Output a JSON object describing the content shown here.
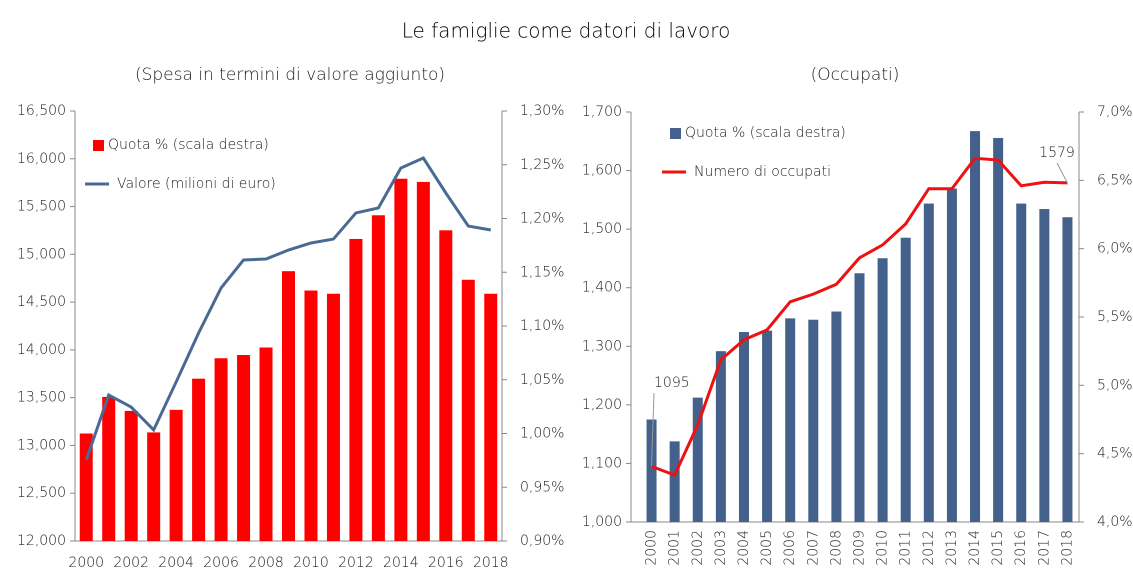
{
  "title": "Le famiglie come datori di lavoro",
  "chart_data": [
    {
      "type": "combo",
      "subtitle": "(Spesa in termini di valore aggiunto)",
      "categories": [
        "2000",
        null,
        "2002",
        null,
        "2004",
        null,
        "2006",
        null,
        "2008",
        null,
        "2010",
        null,
        "2012",
        null,
        "2014",
        null,
        "2016",
        null,
        "2018"
      ],
      "ylim": [
        12000,
        16500
      ],
      "yticks": [
        {
          "value": 12000,
          "label": "12,000"
        },
        {
          "value": 12500,
          "label": "12,500"
        },
        {
          "value": 13000,
          "label": "13,000"
        },
        {
          "value": 13500,
          "label": "13,500"
        },
        {
          "value": 14000,
          "label": "14,000"
        },
        {
          "value": 14500,
          "label": "14,500"
        },
        {
          "value": 15000,
          "label": "15,000"
        },
        {
          "value": 15500,
          "label": "15,500"
        },
        {
          "value": 16000,
          "label": "16,000"
        },
        {
          "value": 16500,
          "label": "16,500"
        }
      ],
      "y2lim": [
        0.9,
        1.3
      ],
      "y2ticks": [
        {
          "value": 0.9,
          "label": "0,90%"
        },
        {
          "value": 0.95,
          "label": "0,95%"
        },
        {
          "value": 1.0,
          "label": "1,00%"
        },
        {
          "value": 1.05,
          "label": "1,05%"
        },
        {
          "value": 1.1,
          "label": "1,10%"
        },
        {
          "value": 1.15,
          "label": "1,15%"
        },
        {
          "value": 1.2,
          "label": "1,20%"
        },
        {
          "value": 1.25,
          "label": "1,25%"
        },
        {
          "value": 1.3,
          "label": "1,30%"
        }
      ],
      "series": [
        {
          "name": "Quota % (scala destra)",
          "type": "bar",
          "axis": "y2",
          "color": "#ff0000",
          "values": [
            1.0,
            1.034,
            1.021,
            1.001,
            1.022,
            1.051,
            1.07,
            1.073,
            1.08,
            1.151,
            1.133,
            1.13,
            1.181,
            1.203,
            1.237,
            1.234,
            1.189,
            1.143,
            1.13
          ]
        },
        {
          "name": "Valore (milioni di euro)",
          "type": "line",
          "color": "#4a6a94",
          "values": [
            12848,
            13528,
            13402,
            13162,
            13664,
            14177,
            14648,
            14941,
            14951,
            15045,
            15119,
            15160,
            15433,
            15485,
            15903,
            16008,
            15642,
            15296,
            15255
          ]
        }
      ]
    },
    {
      "type": "combo",
      "subtitle": "(Occupati)",
      "categories": [
        "2000",
        "2001",
        "2002",
        "2003",
        "2004",
        "2005",
        "2006",
        "2007",
        "2008",
        "2009",
        "2010",
        "2011",
        "2012",
        "2013",
        "2014",
        "2015",
        "2016",
        "2017",
        "2018"
      ],
      "ylim": [
        1000,
        1700
      ],
      "yticks": [
        {
          "value": 1000,
          "label": "1,000"
        },
        {
          "value": 1100,
          "label": "1,100"
        },
        {
          "value": 1200,
          "label": "1,200"
        },
        {
          "value": 1300,
          "label": "1,300"
        },
        {
          "value": 1400,
          "label": "1,400"
        },
        {
          "value": 1500,
          "label": "1,500"
        },
        {
          "value": 1600,
          "label": "1,600"
        },
        {
          "value": 1700,
          "label": "1,700"
        }
      ],
      "y2lim": [
        4,
        7
      ],
      "y2ticks": [
        {
          "value": 4,
          "label": "4,0%"
        },
        {
          "value": 4.5,
          "label": "4,5%"
        },
        {
          "value": 5,
          "label": "5,0%"
        },
        {
          "value": 5.5,
          "label": "5,5%"
        },
        {
          "value": 6,
          "label": "6,0%"
        },
        {
          "value": 6.5,
          "label": "6,5%"
        },
        {
          "value": 7,
          "label": "7,0%"
        }
      ],
      "series": [
        {
          "name": "Quota % (scala destra)",
          "type": "bar",
          "axis": "y2",
          "color": "#44618c",
          "values": [
            4.75,
            4.59,
            4.91,
            5.25,
            5.39,
            5.4,
            5.49,
            5.48,
            5.54,
            5.82,
            5.93,
            6.08,
            6.33,
            6.44,
            6.86,
            6.81,
            6.33,
            6.29,
            6.23
          ]
        },
        {
          "name": "Numero di occupati",
          "type": "line",
          "color": "#ee1111",
          "values": [
            1095,
            1080,
            1166,
            1277,
            1311,
            1328,
            1376,
            1389,
            1406,
            1451,
            1473,
            1509,
            1569,
            1569,
            1621,
            1618,
            1574,
            1580,
            1579
          ]
        }
      ]
    }
  ]
}
